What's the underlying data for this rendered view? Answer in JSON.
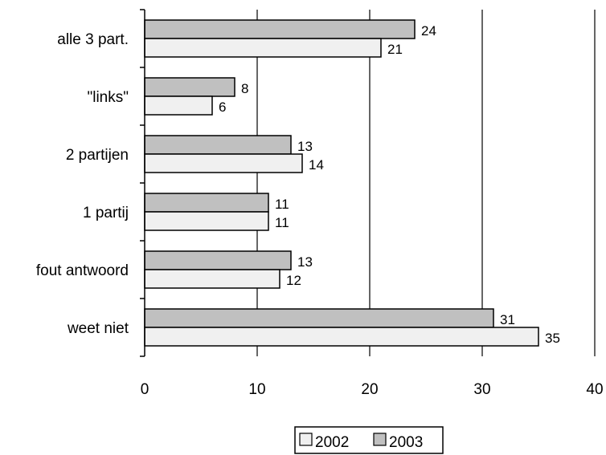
{
  "chart_data": {
    "type": "bar",
    "orientation": "horizontal",
    "categories": [
      "alle 3 part.",
      "\"links\"",
      "2 partijen",
      "1 partij",
      "fout antwoord",
      "weet niet"
    ],
    "series": [
      {
        "name": "2002",
        "values": [
          21,
          6,
          14,
          11,
          12,
          35
        ],
        "color": "#f0f0f0"
      },
      {
        "name": "2003",
        "values": [
          24,
          8,
          13,
          11,
          13,
          31
        ],
        "color": "#c0c0c0"
      }
    ],
    "xlim": [
      0,
      40
    ],
    "xticks": [
      0,
      10,
      20,
      30,
      40
    ],
    "grid": true,
    "legend_position": "bottom"
  }
}
